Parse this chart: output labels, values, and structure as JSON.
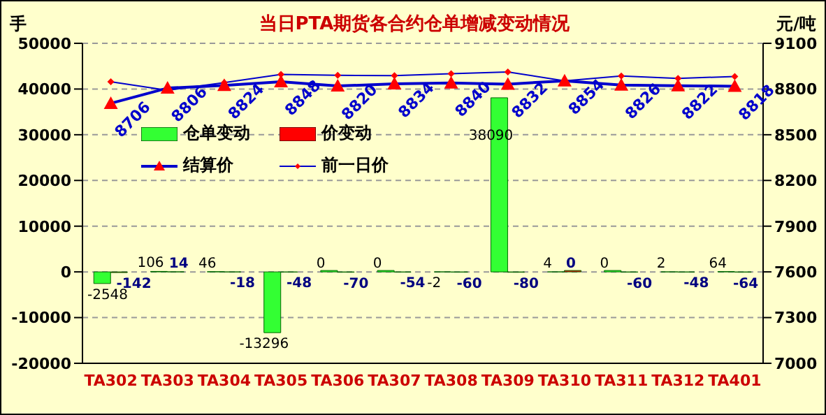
{
  "chart_data": {
    "type": "bar",
    "title": "当日PTA期货各合约仓单增减变动情况",
    "ylabel": "手",
    "y2label": "元/吨",
    "categories": [
      "TA302",
      "TA303",
      "TA304",
      "TA305",
      "TA306",
      "TA307",
      "TA308",
      "TA309",
      "TA310",
      "TA311",
      "TA312",
      "TA401"
    ],
    "series": [
      {
        "name": "仓单变动",
        "color": "#33ff33",
        "values": [
          -2548,
          106,
          46,
          -13296,
          0,
          0,
          -2,
          38090,
          4,
          0,
          2,
          64
        ],
        "value_labels": [
          "-2548",
          "106",
          "46",
          "-13296",
          "0",
          "0",
          "-2",
          "38090",
          "4",
          "0",
          "2",
          "64"
        ]
      },
      {
        "name": "价变动",
        "color": "#ff0000",
        "values": [
          -142,
          14,
          -18,
          -48,
          -70,
          -54,
          -60,
          -80,
          0,
          -60,
          -48,
          -64
        ],
        "value_labels": [
          "-142",
          "14",
          "-18",
          "-48",
          "-70",
          "-54",
          "-60",
          "-80",
          "0",
          "-60",
          "-48",
          "-64"
        ]
      },
      {
        "name": "结算价",
        "type": "line",
        "axis": "y2",
        "color": "#0000cc",
        "marker": "triangle",
        "values": [
          8706,
          8806,
          8824,
          8848,
          8820,
          8834,
          8840,
          8832,
          8854,
          8826,
          8822,
          8818
        ],
        "value_labels": [
          "8706",
          "8806",
          "8824",
          "8848",
          "8820",
          "8834",
          "8840",
          "8832",
          "8854",
          "8826",
          "8822",
          "8818"
        ]
      },
      {
        "name": "前一日价",
        "type": "line",
        "axis": "y2",
        "color": "#0000cc",
        "marker": "diamond",
        "values": [
          8848,
          8792,
          8842,
          8896,
          8890,
          8888,
          8900,
          8912,
          8854,
          8886,
          8870,
          8882
        ]
      }
    ],
    "ylim": [
      -20000,
      50000
    ],
    "yticks": [
      -20000,
      -10000,
      0,
      10000,
      20000,
      30000,
      40000,
      50000
    ],
    "y2lim": [
      7000,
      9100
    ],
    "y2ticks": [
      7000,
      7300,
      7600,
      7900,
      8200,
      8500,
      8800,
      9100
    ],
    "grid": "y",
    "legend": "top left"
  }
}
